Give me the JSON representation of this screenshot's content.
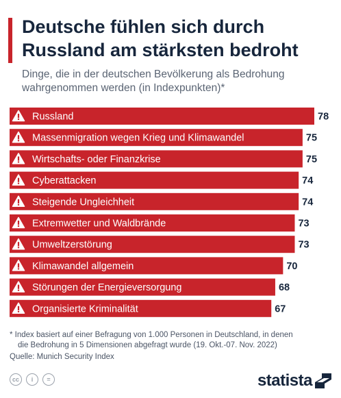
{
  "header": {
    "title": "Deutsche fühlen sich durch Russland am stärksten bedroht",
    "subtitle": "Dinge, die in der deutschen Bevölkerung als Bedrohung wahrgenommen werden (in Indexpunkten)*"
  },
  "chart_data": {
    "type": "bar",
    "orientation": "horizontal",
    "categories": [
      "Russland",
      "Massenmigration wegen Krieg und Klimawandel",
      "Wirtschafts- oder Finanzkrise",
      "Cyberattacken",
      "Steigende Ungleichheit",
      "Extremwetter und Waldbrände",
      "Umweltzerstörung",
      "Klimawandel allgemein",
      "Störungen der Energieversorgung",
      "Organisierte Kriminalität"
    ],
    "values": [
      78,
      75,
      75,
      74,
      74,
      73,
      73,
      70,
      68,
      67
    ],
    "xlim": [
      0,
      78
    ],
    "bar_color": "#c8242b",
    "label_color": "#ffffff",
    "value_color": "#17263c",
    "icon": "warning-triangle-icon",
    "grid": false
  },
  "footer": {
    "footnote_line1": "* Index basiert auf einer Befragung von 1.000 Personen in Deutschland, in denen",
    "footnote_line2": "die Bedrohung in 5 Dimensionen abgefragt wurde (19. Okt.-07. Nov. 2022)",
    "source": "Quelle: Munich Security Index",
    "brand": "statista",
    "license_icons": [
      "cc-icon",
      "by-icon",
      "nd-icon"
    ],
    "license_cc": "cc",
    "license_by": "i",
    "license_nd": "="
  }
}
